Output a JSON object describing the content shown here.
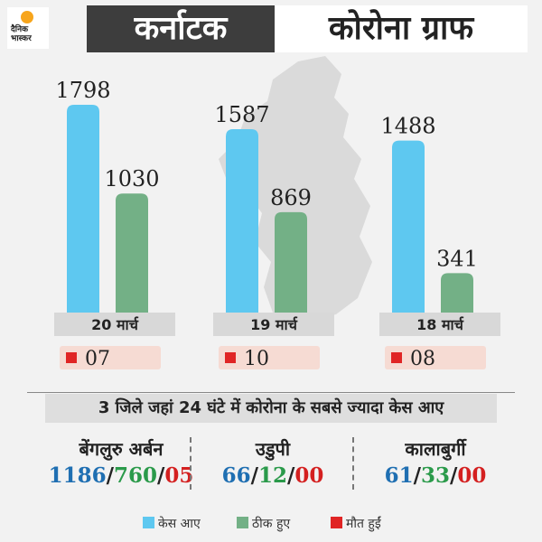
{
  "logo": {
    "text": "दैनिक भास्कर"
  },
  "header": {
    "title_state": "कर्नाटक",
    "title_graph": "कोरोना ग्राफ"
  },
  "colors": {
    "cases": "#5ec8f0",
    "recovered": "#73b086",
    "deaths": "#e02525",
    "cases_text": "#1f6fb2",
    "recovered_text": "#2a9a4a",
    "deaths_text": "#d42020"
  },
  "chart_data": {
    "type": "bar",
    "categories": [
      "20 मार्च",
      "19 मार्च",
      "18 मार्च"
    ],
    "series": [
      {
        "name": "केस आए",
        "values": [
          1798,
          1587,
          1488
        ]
      },
      {
        "name": "ठीक हुए",
        "values": [
          1030,
          869,
          341
        ]
      }
    ],
    "deaths": [
      "07",
      "10",
      "08"
    ],
    "ylim": [
      0,
      2000
    ]
  },
  "districts": {
    "heading": "3 जिले जहां 24 घंटे में कोरोना के सबसे ज्यादा केस आए",
    "items": [
      {
        "name": "बेंगलुरु अर्बन",
        "cases": "1186",
        "recovered": "760",
        "deaths": "05"
      },
      {
        "name": "उडुपी",
        "cases": "66",
        "recovered": "12",
        "deaths": "00"
      },
      {
        "name": "कालाबुर्गी",
        "cases": "61",
        "recovered": "33",
        "deaths": "00"
      }
    ],
    "sep": "/"
  },
  "legend": {
    "cases": "केस आए",
    "recovered": "ठीक हुए",
    "deaths": "मौत हुईं"
  }
}
